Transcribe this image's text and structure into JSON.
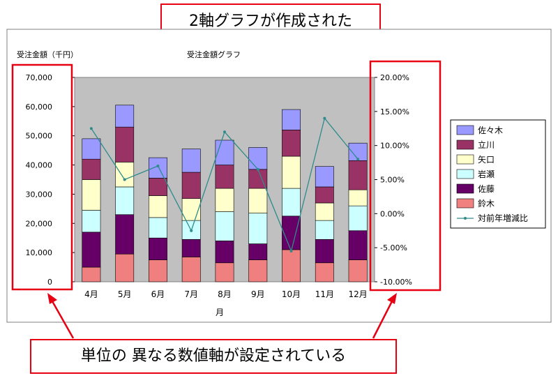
{
  "annotations": {
    "top_callout": "2軸グラフが作成された",
    "bottom_callout": "単位の 異なる数値軸が設定されている"
  },
  "colors": {
    "annotation_red": "#e60012",
    "plot_area": "#c0c0c0",
    "line": "#2e8b8b"
  },
  "chart_data": {
    "type": "bar",
    "title": "受注金額グラフ",
    "ylabel": "受注金額（千円）",
    "xlabel": "月",
    "categories": [
      "4月",
      "5月",
      "6月",
      "7月",
      "8月",
      "9月",
      "10月",
      "11月",
      "12月"
    ],
    "ylim": [
      0,
      70000
    ],
    "y_ticks": [
      "70,000",
      "60,000",
      "50,000",
      "40,000",
      "30,000",
      "20,000",
      "10,000",
      "0"
    ],
    "y2lim": [
      -0.1,
      0.2
    ],
    "y2_ticks": [
      "20.00%",
      "15.00%",
      "10.00%",
      "5.00%",
      "0.00%",
      "-5.00%",
      "-10.00%"
    ],
    "stacked": true,
    "series": [
      {
        "name": "鈴木",
        "color": "#f08080",
        "values": [
          5000,
          9500,
          7500,
          8500,
          6500,
          7500,
          11000,
          6500,
          7500
        ]
      },
      {
        "name": "佐藤",
        "color": "#660066",
        "values": [
          12000,
          13500,
          7500,
          6000,
          7500,
          5500,
          11500,
          8000,
          10000
        ]
      },
      {
        "name": "岩瀬",
        "color": "#ccffff",
        "values": [
          7500,
          9500,
          7000,
          6500,
          10000,
          10500,
          9500,
          6500,
          8500
        ]
      },
      {
        "name": "矢口",
        "color": "#ffffcc",
        "values": [
          10500,
          8500,
          7500,
          7500,
          8000,
          8500,
          11000,
          6000,
          5500
        ]
      },
      {
        "name": "立川",
        "color": "#993366",
        "values": [
          7000,
          12000,
          6000,
          9000,
          8000,
          6500,
          9000,
          5500,
          10000
        ]
      },
      {
        "name": "佐々木",
        "color": "#9999ff",
        "values": [
          7000,
          7500,
          7000,
          8000,
          8500,
          7500,
          7000,
          7000,
          6000
        ]
      }
    ],
    "line_series": {
      "name": "対前年増減比",
      "axis": "right",
      "values": [
        0.125,
        0.05,
        0.07,
        -0.025,
        0.12,
        0.065,
        -0.055,
        0.14,
        0.08
      ]
    },
    "legend_position": "right",
    "grid": false
  }
}
